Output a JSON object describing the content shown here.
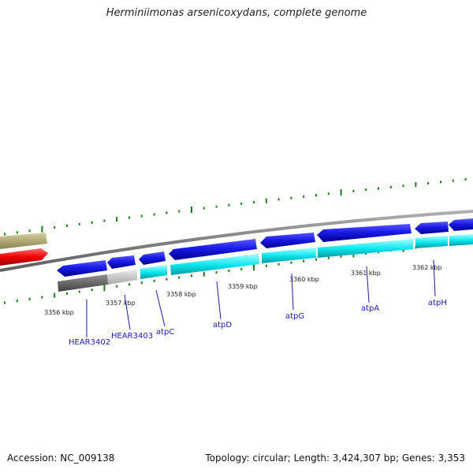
{
  "title": "Herminiimonas arsenicoxydans, complete genome",
  "footer": {
    "accession": "Accession: NC_009138",
    "summary": "Topology: circular; Length: 3,424,307 bp; Genes: 3,353"
  },
  "colors": {
    "forward_cds": "#1010e0",
    "reverse_cds": "#00e8f0",
    "backbone": "#808080",
    "gc_ticks": "#1a7a1a",
    "rrna": "#e00000",
    "trna_olive": "#b8b070",
    "dark_grey": "#666666",
    "light_grey": "#c8c8c8"
  },
  "kbp_ticks": [
    "3356 kbp",
    "3357 kbp",
    "3358 kbp",
    "3359 kbp",
    "3360 kbp",
    "3361 kbp",
    "3362 kbp"
  ],
  "gene_labels": [
    "HEAR3402",
    "HEAR3403",
    "atpC",
    "atpD",
    "atpG",
    "atpA",
    "atpH"
  ]
}
